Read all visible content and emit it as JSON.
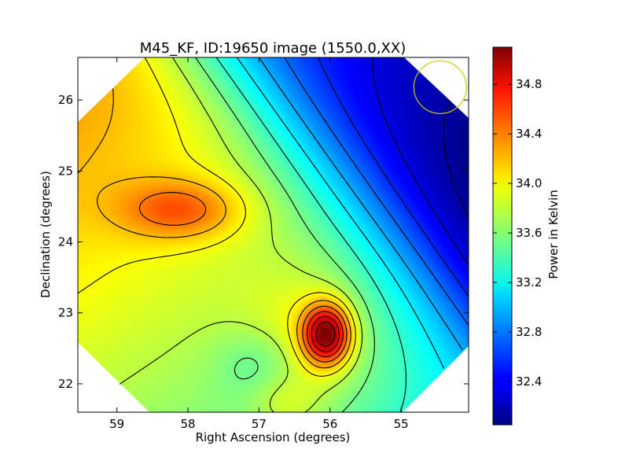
{
  "chart_data": {
    "type": "heatmap",
    "title": "M45_KF, ID:19650 image (1550.0,XX)",
    "xlabel": "Right Ascension (degrees)",
    "ylabel": "Declination (degrees)",
    "colorbar_label": "Power in Kelvin",
    "xlim": [
      59.55,
      54.05
    ],
    "ylim": [
      21.6,
      26.6
    ],
    "xticks": [
      59,
      58,
      57,
      56,
      55
    ],
    "xtick_labels": [
      "59",
      "58",
      "57",
      "56",
      "55"
    ],
    "yticks": [
      22,
      23,
      24,
      25,
      26
    ],
    "ytick_labels": [
      "22",
      "23",
      "24",
      "25",
      "26"
    ],
    "colorbar_range": [
      32.05,
      35.1
    ],
    "colorbar_ticks": [
      32.4,
      32.8,
      33.2,
      33.6,
      34.0,
      34.4,
      34.8
    ],
    "colorbar_tick_labels": [
      "32.4",
      "32.8",
      "33.2",
      "33.6",
      "34.0",
      "34.4",
      "34.8"
    ],
    "colormap": "jet",
    "contours": true,
    "beam_circle": {
      "ra": 54.45,
      "dec": 26.18,
      "radius_deg": 0.37,
      "color": "#c8c800"
    },
    "features": [
      {
        "kind": "peak",
        "ra": 56.05,
        "dec": 22.7,
        "value": 35.05
      },
      {
        "kind": "local-max",
        "ra": 58.1,
        "dec": 24.45,
        "value": 34.3
      },
      {
        "kind": "minimum-region",
        "ra": 54.5,
        "dec": 26.2,
        "value": 32.05
      }
    ]
  }
}
